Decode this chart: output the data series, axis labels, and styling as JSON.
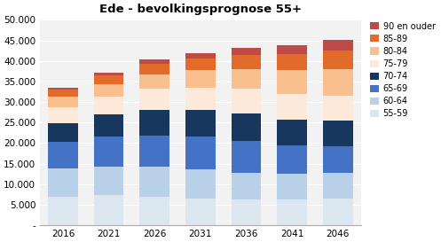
{
  "title": "Ede - bevolkingsprognose 55+",
  "years": [
    2016,
    2021,
    2026,
    2031,
    2036,
    2041,
    2046
  ],
  "categories": [
    "55-59",
    "60-64",
    "65-69",
    "70-74",
    "75-79",
    "80-84",
    "85-89",
    "90 en ouder"
  ],
  "colors": [
    "#dce6f1",
    "#b8d0e8",
    "#4472c4",
    "#17375e",
    "#fde9d9",
    "#fabf8f",
    "#e26b2a",
    "#be4b48"
  ],
  "data": {
    "55-59": [
      7000,
      7300,
      6800,
      6500,
      6200,
      6200,
      6500
    ],
    "60-64": [
      6800,
      7000,
      7400,
      7000,
      6600,
      6300,
      6200
    ],
    "65-69": [
      6500,
      7200,
      7700,
      8000,
      7800,
      7000,
      6500
    ],
    "70-74": [
      4600,
      5500,
      6200,
      6500,
      6700,
      6200,
      6300
    ],
    "75-79": [
      3800,
      4300,
      5100,
      5500,
      5900,
      6200,
      6000
    ],
    "80-84": [
      2700,
      3100,
      3600,
      4200,
      4800,
      5800,
      6500
    ],
    "85-89": [
      1600,
      2100,
      2500,
      2900,
      3500,
      4000,
      4500
    ],
    "90 en ouder": [
      500,
      700,
      1000,
      1300,
      1800,
      2200,
      2700
    ]
  },
  "ylim": [
    0,
    50000
  ],
  "yticks": [
    0,
    5000,
    10000,
    15000,
    20000,
    25000,
    30000,
    35000,
    40000,
    45000,
    50000
  ],
  "background_color": "#ffffff",
  "plot_bg_color": "#f2f2f2",
  "figsize": [
    4.97,
    2.73
  ],
  "dpi": 100
}
